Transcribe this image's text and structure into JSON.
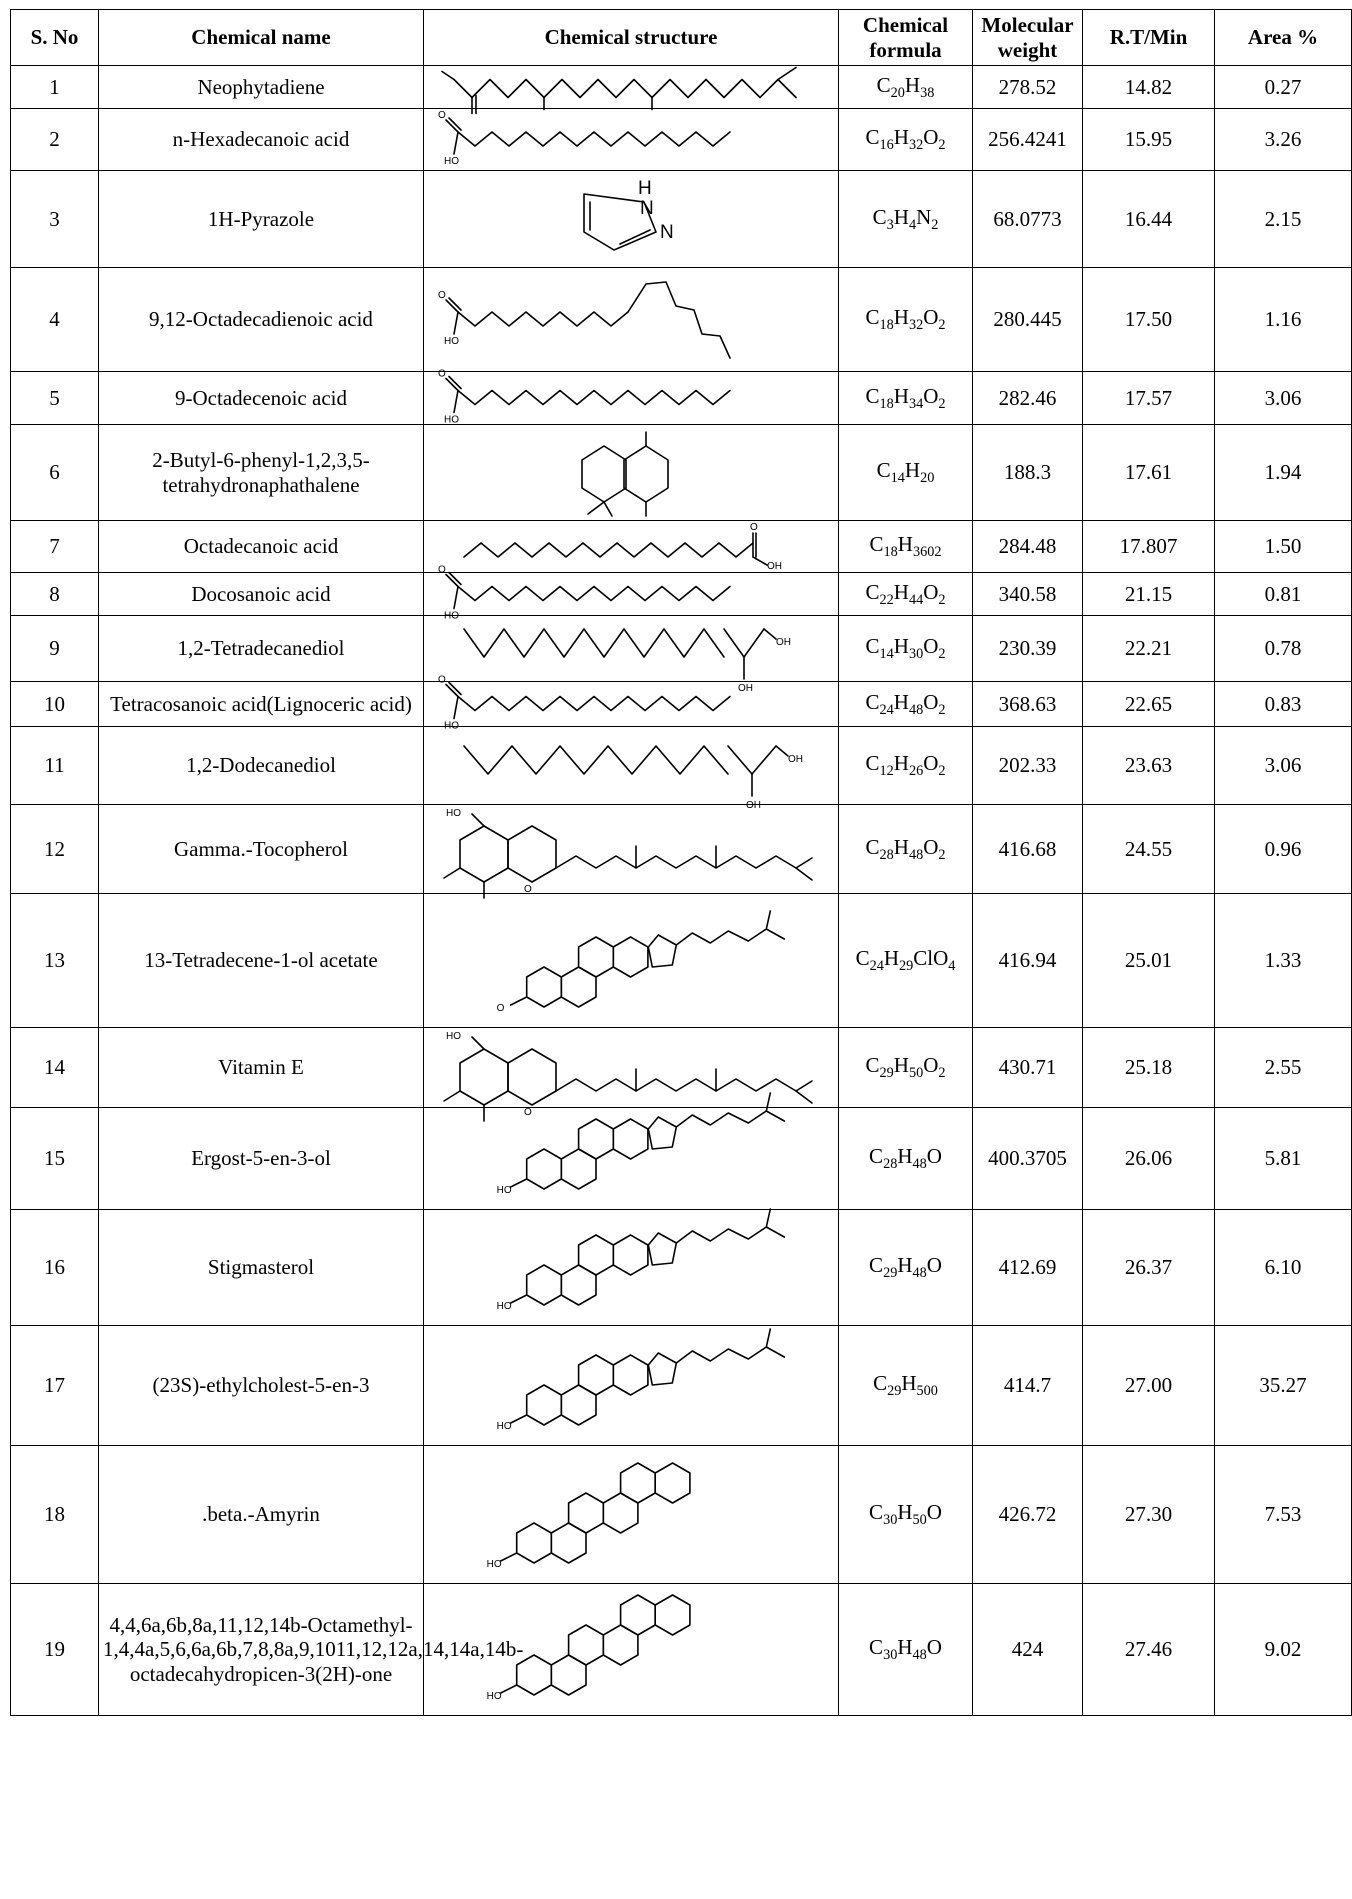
{
  "table": {
    "headers": {
      "sno": "S. No",
      "name": "Chemical name",
      "structure": "Chemical structure",
      "formula": "Chemical formula",
      "mw": "Molecular weight",
      "rt": "R.T/Min",
      "area": "Area %"
    },
    "rows": [
      {
        "sno": "1",
        "name": "Neophytadiene",
        "formula": "C20H38",
        "mw": "278.52",
        "rt": "14.82",
        "area": "0.27",
        "structure": "chain-diene"
      },
      {
        "sno": "2",
        "name": "n-Hexadecanoic acid",
        "formula": "C16H32O2",
        "mw": "256.4241",
        "rt": "15.95",
        "area": "3.26",
        "structure": "fatty-acid"
      },
      {
        "sno": "3",
        "name": "1H-Pyrazole",
        "formula": "C3H4N2",
        "mw": "68.0773",
        "rt": "16.44",
        "area": "2.15",
        "structure": "pyrazole"
      },
      {
        "sno": "4",
        "name": "9,12-Octadecadienoic acid",
        "formula": "C18H32O2",
        "mw": "280.445",
        "rt": "17.50",
        "area": "1.16",
        "structure": "fatty-acid-diene"
      },
      {
        "sno": "5",
        "name": "9-Octadecenoic acid",
        "formula": "C18H34O2",
        "mw": "282.46",
        "rt": "17.57",
        "area": "3.06",
        "structure": "fatty-acid"
      },
      {
        "sno": "6",
        "name": "2-Butyl-6-phenyl-1,2,3,5-tetrahydronaphathalene",
        "formula": "C14H20",
        "mw": "188.3",
        "rt": "17.61",
        "area": "1.94",
        "structure": "tetralin"
      },
      {
        "sno": "7",
        "name": "Octadecanoic acid",
        "formula": "C18H3602",
        "mw": "284.48",
        "rt": "17.807",
        "area": "1.50",
        "structure": "fatty-acid-right"
      },
      {
        "sno": "8",
        "name": "Docosanoic acid",
        "formula": "C22H44O2",
        "mw": "340.58",
        "rt": "21.15",
        "area": "0.81",
        "structure": "fatty-acid"
      },
      {
        "sno": "9",
        "name": "1,2-Tetradecanediol",
        "formula": "C14H30O2",
        "mw": "230.39",
        "rt": "22.21",
        "area": "0.78",
        "structure": "diol"
      },
      {
        "sno": "10",
        "name": "Tetracosanoic acid(Lignoceric acid)",
        "formula": "C24H48O2",
        "mw": "368.63",
        "rt": "22.65",
        "area": "0.83",
        "structure": "fatty-acid"
      },
      {
        "sno": "11",
        "name": "1,2-Dodecanediol",
        "formula": "C12H26O2",
        "mw": "202.33",
        "rt": "23.63",
        "area": "3.06",
        "structure": "diol"
      },
      {
        "sno": "12",
        "name": "Gamma.-Tocopherol",
        "formula": "C28H48O2",
        "mw": "416.68",
        "rt": "24.55",
        "area": "0.96",
        "structure": "tocopherol"
      },
      {
        "sno": "13",
        "name": "13-Tetradecene-1-ol acetate",
        "formula": "C24H29ClO4",
        "mw": "416.94",
        "rt": "25.01",
        "area": "1.33",
        "structure": "steroid-lactone"
      },
      {
        "sno": "14",
        "name": "Vitamin E",
        "formula": "C29H50O2",
        "mw": "430.71",
        "rt": "25.18",
        "area": "2.55",
        "structure": "tocopherol"
      },
      {
        "sno": "15",
        "name": "Ergost-5-en-3-ol",
        "formula": "C28H48O",
        "mw": "400.3705",
        "rt": "26.06",
        "area": "5.81",
        "structure": "sterol"
      },
      {
        "sno": "16",
        "name": "Stigmasterol",
        "formula": "C29H48O",
        "mw": "412.69",
        "rt": "26.37",
        "area": "6.10",
        "structure": "sterol"
      },
      {
        "sno": "17",
        "name": "(23S)-ethylcholest-5-en-3",
        "formula": "C29H500",
        "mw": "414.7",
        "rt": "27.00",
        "area": "35.27",
        "structure": "sterol"
      },
      {
        "sno": "18",
        "name": ".beta.-Amyrin",
        "formula": "C30H50O",
        "mw": "426.72",
        "rt": "27.30",
        "area": "7.53",
        "structure": "triterpene"
      },
      {
        "sno": "19",
        "name": "4,4,6a,6b,8a,11,12,14b-Octamethyl-1,4,4a,5,6,6a,6b,7,8,8a,9,1011,12,12a,14,14a,14b-octadecahydropicen-3(2H)-one",
        "formula": "C30H48O",
        "mw": "424",
        "rt": "27.46",
        "area": "9.02",
        "structure": "triterpene"
      }
    ]
  }
}
